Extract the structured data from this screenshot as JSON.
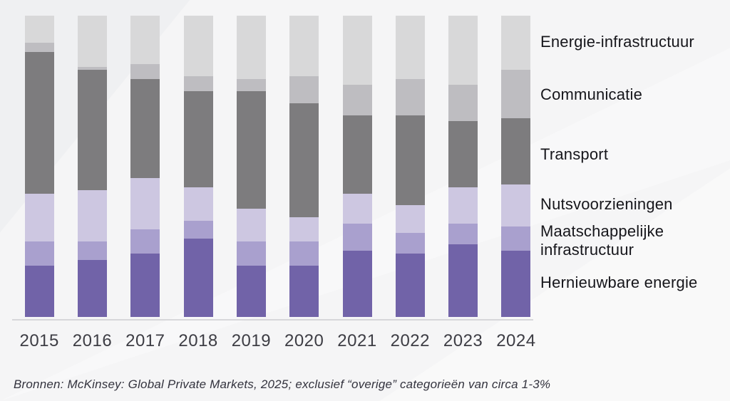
{
  "chart_data": {
    "type": "bar",
    "variant": "stacked-100-percent",
    "title": "",
    "unit": "%",
    "ylim": [
      0,
      100
    ],
    "grid": false,
    "legend_position": "right",
    "categories": [
      "2015",
      "2016",
      "2017",
      "2018",
      "2019",
      "2020",
      "2021",
      "2022",
      "2023",
      "2024"
    ],
    "series": [
      {
        "name": "Hernieuwbare energie",
        "color": "#7163a8",
        "values": [
          17,
          19,
          21,
          26,
          17,
          17,
          22,
          21,
          24,
          22
        ]
      },
      {
        "name": "Maatschappelijke infrastructuur",
        "color": "#a9a0ce",
        "values": [
          8,
          6,
          8,
          6,
          8,
          8,
          9,
          7,
          7,
          8
        ]
      },
      {
        "name": "Nutsvoorzieningen",
        "color": "#cdc7e1",
        "values": [
          16,
          17,
          17,
          11,
          11,
          8,
          10,
          9,
          12,
          14
        ]
      },
      {
        "name": "Transport",
        "color": "#7d7c7e",
        "values": [
          47,
          40,
          33,
          32,
          39,
          38,
          26,
          30,
          22,
          22
        ]
      },
      {
        "name": "Communicatie",
        "color": "#bebdc1",
        "values": [
          3,
          1,
          5,
          5,
          4,
          9,
          10,
          12,
          12,
          16
        ]
      },
      {
        "name": "Energie-infrastructuur",
        "color": "#d8d8d9",
        "values": [
          9,
          17,
          16,
          20,
          21,
          20,
          23,
          21,
          23,
          18
        ]
      }
    ]
  },
  "legend": {
    "items": [
      {
        "label": "Energie-infrastructuur"
      },
      {
        "label": "Communicatie"
      },
      {
        "label": "Transport"
      },
      {
        "label": "Nutsvoorzieningen"
      },
      {
        "label": "Maatschappelijke infrastructuur"
      },
      {
        "label": "Hernieuwbare energie"
      }
    ]
  },
  "source_note": "Bronnen: McKinsey: Global Private Markets, 2025; exclusief “overige” categorieën van circa 1-3%"
}
